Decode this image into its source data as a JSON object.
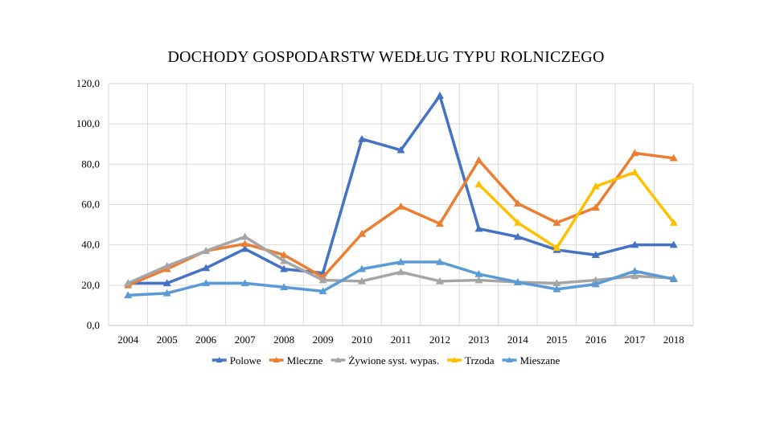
{
  "chart_data": {
    "type": "line",
    "title": "DOCHODY GOSPODARSTW WEDŁUG TYPU ROLNICZEGO",
    "x": [
      "2004",
      "2005",
      "2006",
      "2007",
      "2008",
      "2009",
      "2010",
      "2011",
      "2012",
      "2013",
      "2014",
      "2015",
      "2016",
      "2017",
      "2018"
    ],
    "y_ticks": [
      "0,0",
      "20,0",
      "40,0",
      "60,0",
      "80,0",
      "100,0",
      "120,0"
    ],
    "ylim": [
      0,
      120
    ],
    "grid": true,
    "legend_position": "bottom",
    "marker": "triangle",
    "series": [
      {
        "name": "Polowe",
        "color": "#4472C4",
        "values": [
          21.0,
          21.0,
          28.5,
          38.0,
          28.0,
          26.0,
          92.5,
          87.0,
          114.0,
          48.0,
          44.0,
          37.5,
          35.0,
          40.0,
          40.0
        ]
      },
      {
        "name": "Mleczne",
        "color": "#ED7D31",
        "values": [
          20.0,
          28.0,
          37.0,
          40.5,
          35.0,
          24.0,
          45.5,
          59.0,
          50.5,
          82.0,
          60.5,
          51.0,
          58.5,
          85.5,
          83.0
        ]
      },
      {
        "name": "Żywione syst. wypas.",
        "color": "#A5A5A5",
        "values": [
          21.0,
          29.5,
          37.0,
          44.0,
          32.0,
          22.5,
          22.0,
          26.5,
          22.0,
          22.5,
          21.5,
          21.0,
          22.5,
          24.5,
          23.5
        ]
      },
      {
        "name": "Trzoda",
        "color": "#FFC000",
        "values": [
          null,
          null,
          null,
          null,
          null,
          null,
          null,
          null,
          null,
          70.0,
          51.0,
          38.5,
          69.0,
          76.0,
          51.0
        ]
      },
      {
        "name": "Mieszane",
        "color": "#5B9BD5",
        "values": [
          15.0,
          16.0,
          21.0,
          21.0,
          19.0,
          17.0,
          28.0,
          31.5,
          31.5,
          25.5,
          21.5,
          18.0,
          20.5,
          27.0,
          23.0
        ]
      }
    ]
  }
}
